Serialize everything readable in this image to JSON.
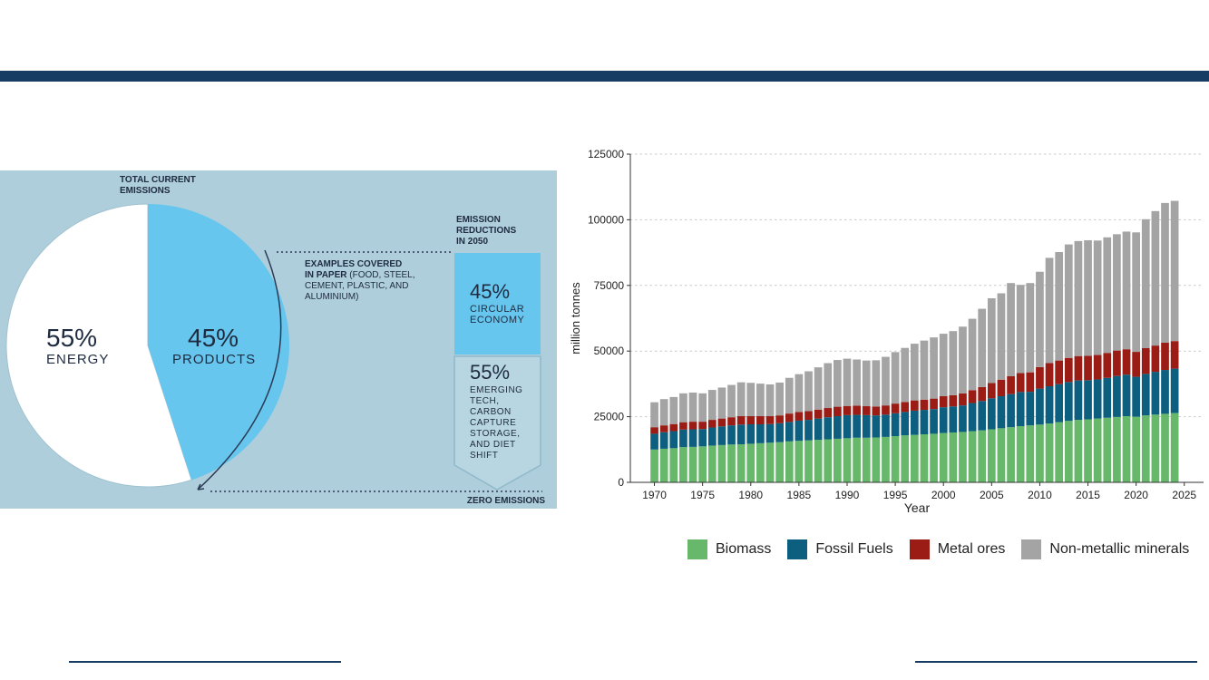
{
  "colors": {
    "navy": "#173c63",
    "panel_bg": "#afcedb",
    "pie_products": "#67c6ee",
    "pie_energy": "#ffffff",
    "dark_text": "#1e2b40",
    "biomass": "#67b86a",
    "fossil": "#0d5f80",
    "metal": "#9b1c15",
    "nonmetal": "#a4a4a4"
  },
  "infographic": {
    "total_current_line1": "TOTAL CURRENT",
    "total_current_line2": "EMISSIONS",
    "energy_pct": "55%",
    "energy_label": "ENERGY",
    "products_pct": "45%",
    "products_label": "PRODUCTS",
    "examples_line1": "EXAMPLES COVERED",
    "examples_line2_bold": "IN PAPER",
    "examples_line2_rest": " (FOOD, STEEL,",
    "examples_line3": "CEMENT, PLASTIC, AND",
    "examples_line4": "ALUMINIUM)",
    "reductions_line1": "EMISSION",
    "reductions_line2": "REDUCTIONS",
    "reductions_line3": "IN 2050",
    "circular_pct": "45%",
    "circular_line1": "CIRCULAR",
    "circular_line2": "ECONOMY",
    "emerging_pct": "55%",
    "emerging_lines": [
      "EMERGING",
      "TECH,",
      "CARBON",
      "CAPTURE",
      "STORAGE,",
      "AND DIET",
      "SHIFT"
    ],
    "zero_emissions": "ZERO EMISSIONS"
  },
  "chart_data": [
    {
      "type": "pie",
      "title": "TOTAL CURRENT EMISSIONS",
      "slices": [
        {
          "label": "PRODUCTS",
          "value": 45
        },
        {
          "label": "ENERGY",
          "value": 55
        }
      ]
    },
    {
      "type": "bar",
      "stacked": true,
      "xlabel": "Year",
      "ylabel": "million tonnes",
      "ylim": [
        0,
        125000
      ],
      "xlim": [
        1967.5,
        2027
      ],
      "yticks": [
        0,
        25000,
        50000,
        75000,
        100000,
        125000
      ],
      "ytick_labels": [
        "0",
        "25000",
        "50000",
        "75000",
        "100000",
        "125000"
      ],
      "xticks": [
        1970,
        1975,
        1980,
        1985,
        1990,
        1995,
        2000,
        2005,
        2010,
        2015,
        2020,
        2025
      ],
      "xtick_labels": [
        "1970",
        "1975",
        "1980",
        "1985",
        "1990",
        "1995",
        "2000",
        "2005",
        "2010",
        "2015",
        "2020",
        "2025"
      ],
      "grid": "horizontal dotted",
      "legend_position": "bottom",
      "x": [
        1970,
        1971,
        1972,
        1973,
        1974,
        1975,
        1976,
        1977,
        1978,
        1979,
        1980,
        1981,
        1982,
        1983,
        1984,
        1985,
        1986,
        1987,
        1988,
        1989,
        1990,
        1991,
        1992,
        1993,
        1994,
        1995,
        1996,
        1997,
        1998,
        1999,
        2000,
        2001,
        2002,
        2003,
        2004,
        2005,
        2006,
        2007,
        2008,
        2009,
        2010,
        2011,
        2012,
        2013,
        2014,
        2015,
        2016,
        2017,
        2018,
        2019,
        2020,
        2021,
        2022,
        2023,
        2024
      ],
      "series": [
        {
          "name": "Biomass",
          "color": "#67b86a",
          "values": [
            12500,
            12800,
            13000,
            13400,
            13500,
            13700,
            14000,
            14200,
            14400,
            14500,
            14700,
            14900,
            15100,
            15300,
            15600,
            15800,
            16000,
            16200,
            16400,
            16600,
            16800,
            17000,
            17000,
            17100,
            17300,
            17600,
            17900,
            18100,
            18300,
            18500,
            18800,
            19000,
            19200,
            19500,
            19800,
            20200,
            20600,
            21000,
            21400,
            21700,
            22000,
            22400,
            22900,
            23400,
            23800,
            24000,
            24300,
            24600,
            24900,
            25200,
            25000,
            25500,
            25800,
            26100,
            26400
          ]
        },
        {
          "name": "Fossil Fuels",
          "color": "#0d5f80",
          "values": [
            6000,
            6300,
            6500,
            6700,
            6700,
            6600,
            6900,
            7100,
            7300,
            7500,
            7400,
            7200,
            7100,
            7200,
            7400,
            7700,
            7800,
            8100,
            8400,
            8600,
            8800,
            8700,
            8600,
            8400,
            8500,
            8700,
            8900,
            9200,
            9300,
            9400,
            9800,
            9900,
            10100,
            10700,
            11200,
            11800,
            12200,
            12600,
            13000,
            12800,
            13700,
            14200,
            14500,
            14800,
            15000,
            14900,
            14900,
            15200,
            15600,
            15800,
            15200,
            15800,
            16300,
            16700,
            16900
          ]
        },
        {
          "name": "Metal ores",
          "color": "#9b1c15",
          "values": [
            2500,
            2600,
            2700,
            2800,
            2900,
            2800,
            2900,
            3000,
            3100,
            3200,
            3100,
            3100,
            3000,
            3000,
            3200,
            3300,
            3300,
            3400,
            3500,
            3600,
            3500,
            3500,
            3400,
            3400,
            3500,
            3700,
            3800,
            3900,
            3900,
            4000,
            4200,
            4300,
            4600,
            4900,
            5300,
            5800,
            6300,
            6800,
            7200,
            7400,
            8200,
            8800,
            9000,
            9200,
            9300,
            9300,
            9300,
            9500,
            9700,
            9700,
            9500,
            9800,
            10000,
            10400,
            10500
          ]
        },
        {
          "name": "Non-metallic minerals",
          "color": "#a4a4a4",
          "values": [
            9500,
            10000,
            10300,
            11000,
            11100,
            10800,
            11400,
            11800,
            12300,
            12900,
            12700,
            12400,
            12100,
            12500,
            13600,
            14400,
            15200,
            16100,
            17100,
            17800,
            18000,
            17600,
            17400,
            17600,
            18500,
            19600,
            20600,
            21600,
            22500,
            23300,
            23800,
            24400,
            25400,
            27200,
            29800,
            32300,
            32900,
            35500,
            33600,
            34000,
            36300,
            40100,
            41300,
            43200,
            43800,
            44000,
            43600,
            44000,
            44300,
            44800,
            45500,
            49100,
            51200,
            53200,
            53400
          ]
        }
      ]
    }
  ]
}
